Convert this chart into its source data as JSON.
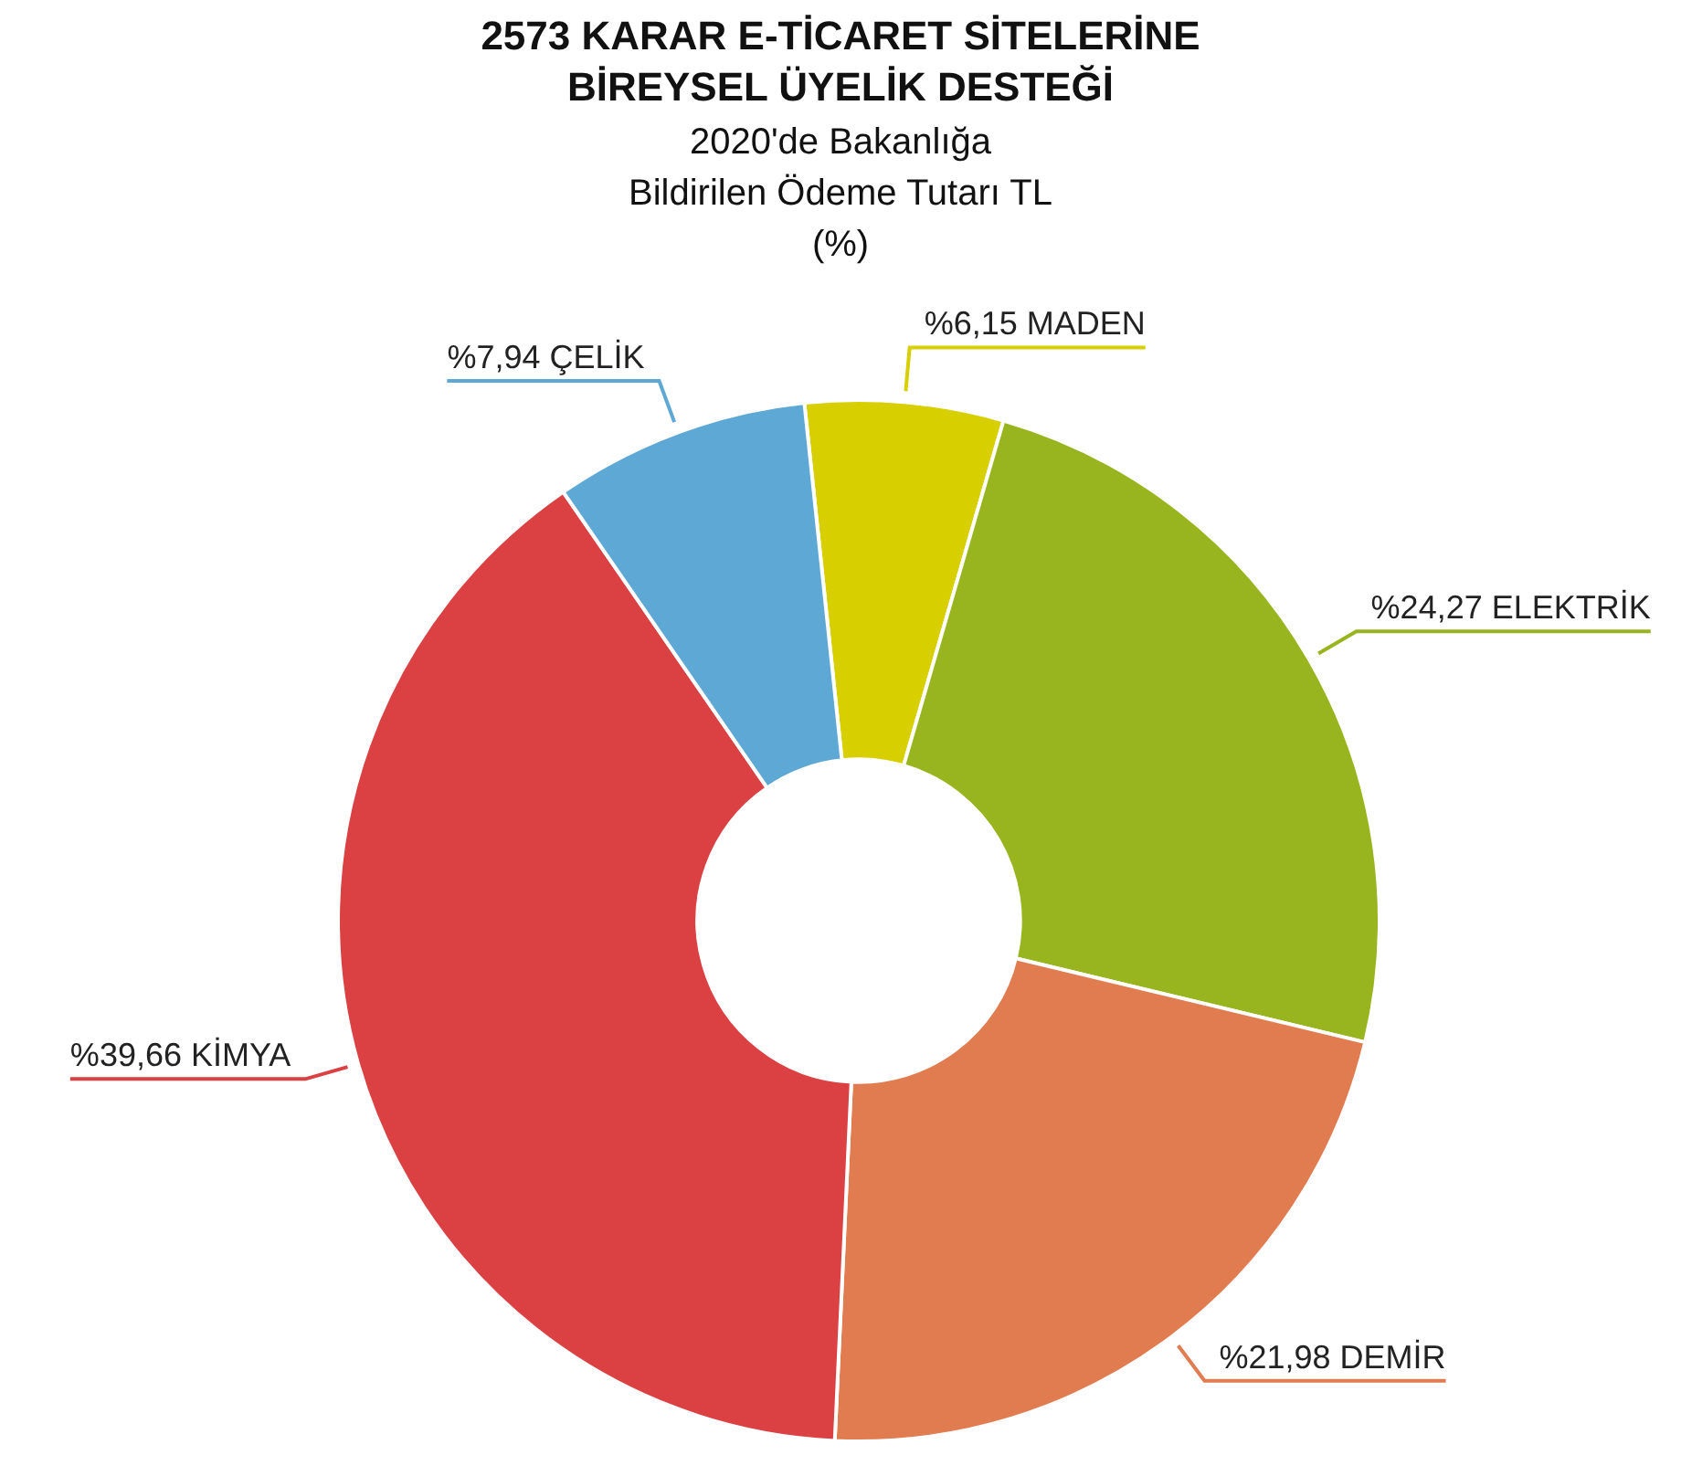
{
  "chart_data": {
    "type": "donut",
    "title": "2573 KARAR E-TİCARET SİTELERİNE BİREYSEL ÜYELİK DESTEĞİ",
    "subtitle": "2020'de Bakanlığa Bildirilen Ödeme Tutarı TL (%)",
    "categories": [
      "MADEN",
      "ELEKTRİK",
      "DEMİR",
      "KİMYA",
      "ÇELİK"
    ],
    "values": [
      6.15,
      24.27,
      21.98,
      39.66,
      7.94
    ],
    "value_labels": [
      "%6,15",
      "%24,27",
      "%21,98",
      "%39,66",
      "%7,94"
    ],
    "colors": [
      "#d8cf00",
      "#98b41e",
      "#e17b50",
      "#db4043",
      "#5ea8d6"
    ],
    "legend": false
  }
}
